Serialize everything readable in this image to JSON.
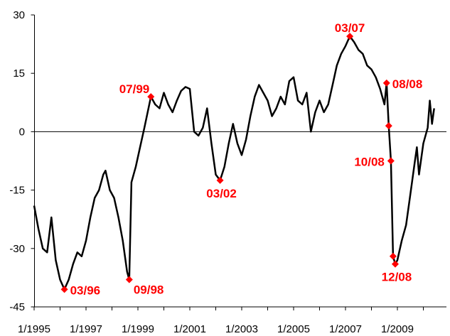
{
  "chart_data": {
    "type": "line",
    "title": "",
    "xlabel": "",
    "ylabel": "",
    "ylim": [
      -45,
      30
    ],
    "xlim": [
      "1995-01",
      "2010-06"
    ],
    "grid": false,
    "legend": "none",
    "y_ticks": [
      30,
      15,
      0,
      -15,
      -30,
      -45
    ],
    "x_ticks": [
      "1/1995",
      "1/1997",
      "1/1999",
      "1/2001",
      "1/2003",
      "1/2005",
      "1/2007",
      "1/2009"
    ],
    "colors": {
      "line": "#000000",
      "annotation": "#ff0000",
      "zero_line": "#000000"
    },
    "series": [
      {
        "values": [
          [
            "1995-01",
            -19
          ],
          [
            "1995-03",
            -25
          ],
          [
            "1995-05",
            -30
          ],
          [
            "1995-07",
            -31
          ],
          [
            "1995-09",
            -22
          ],
          [
            "1995-11",
            -33
          ],
          [
            "1996-01",
            -38
          ],
          [
            "1996-03",
            -40.5
          ],
          [
            "1996-05",
            -38
          ],
          [
            "1996-07",
            -34
          ],
          [
            "1996-09",
            -31
          ],
          [
            "1996-11",
            -32
          ],
          [
            "1997-01",
            -28
          ],
          [
            "1997-03",
            -22
          ],
          [
            "1997-05",
            -17
          ],
          [
            "1997-07",
            -15
          ],
          [
            "1997-09",
            -11
          ],
          [
            "1997-10",
            -10
          ],
          [
            "1997-12",
            -15
          ],
          [
            "1998-02",
            -17
          ],
          [
            "1998-04",
            -22
          ],
          [
            "1998-06",
            -28
          ],
          [
            "1998-08",
            -36
          ],
          [
            "1998-09",
            -38
          ],
          [
            "1998-10",
            -13
          ],
          [
            "1998-12",
            -9
          ],
          [
            "1999-02",
            -4
          ],
          [
            "1999-04",
            1
          ],
          [
            "1999-07",
            9
          ],
          [
            "1999-09",
            7
          ],
          [
            "1999-11",
            6
          ],
          [
            "2000-01",
            10
          ],
          [
            "2000-03",
            7
          ],
          [
            "2000-05",
            5
          ],
          [
            "2000-07",
            8
          ],
          [
            "2000-09",
            10.5
          ],
          [
            "2000-11",
            11.5
          ],
          [
            "2001-01",
            11
          ],
          [
            "2001-03",
            0
          ],
          [
            "2001-05",
            -1
          ],
          [
            "2001-07",
            1
          ],
          [
            "2001-09",
            6
          ],
          [
            "2001-11",
            -3
          ],
          [
            "2002-01",
            -11
          ],
          [
            "2002-03",
            -12.5
          ],
          [
            "2002-05",
            -9
          ],
          [
            "2002-07",
            -3
          ],
          [
            "2002-09",
            2
          ],
          [
            "2002-11",
            -3
          ],
          [
            "2003-01",
            -6
          ],
          [
            "2003-03",
            -2
          ],
          [
            "2003-05",
            4
          ],
          [
            "2003-07",
            9
          ],
          [
            "2003-09",
            12
          ],
          [
            "2003-11",
            10
          ],
          [
            "2004-01",
            8
          ],
          [
            "2004-03",
            4
          ],
          [
            "2004-05",
            6
          ],
          [
            "2004-07",
            9
          ],
          [
            "2004-09",
            7
          ],
          [
            "2004-11",
            13
          ],
          [
            "2005-01",
            14
          ],
          [
            "2005-03",
            8
          ],
          [
            "2005-05",
            7
          ],
          [
            "2005-07",
            10
          ],
          [
            "2005-09",
            0
          ],
          [
            "2005-11",
            5
          ],
          [
            "2006-01",
            8
          ],
          [
            "2006-03",
            5
          ],
          [
            "2006-05",
            7
          ],
          [
            "2006-07",
            12
          ],
          [
            "2006-09",
            17
          ],
          [
            "2006-11",
            20
          ],
          [
            "2007-01",
            22
          ],
          [
            "2007-03",
            24.5
          ],
          [
            "2007-05",
            23
          ],
          [
            "2007-07",
            21
          ],
          [
            "2007-09",
            20
          ],
          [
            "2007-11",
            17
          ],
          [
            "2008-01",
            16
          ],
          [
            "2008-03",
            14
          ],
          [
            "2008-05",
            11
          ],
          [
            "2008-07",
            7
          ],
          [
            "2008-08",
            12.5
          ],
          [
            "2008-09",
            1.5
          ],
          [
            "2008-10",
            -7.5
          ],
          [
            "2008-11",
            -32
          ],
          [
            "2008-12",
            -34
          ],
          [
            "2009-01",
            -33
          ],
          [
            "2009-03",
            -28
          ],
          [
            "2009-05",
            -24
          ],
          [
            "2009-07",
            -16
          ],
          [
            "2009-09",
            -8
          ],
          [
            "2009-10",
            -4
          ],
          [
            "2009-11",
            -11
          ],
          [
            "2010-01",
            -3
          ],
          [
            "2010-03",
            1
          ],
          [
            "2010-04",
            8
          ],
          [
            "2010-05",
            2
          ],
          [
            "2010-06",
            6
          ]
        ]
      }
    ],
    "annotations": [
      {
        "label": "03/96",
        "x": "1996-03",
        "y": -40.5,
        "label_position": "right"
      },
      {
        "label": "09/98",
        "x": "1998-09",
        "y": -38,
        "label_position": "below-right"
      },
      {
        "label": "07/99",
        "x": "1999-07",
        "y": 9,
        "label_position": "above-left"
      },
      {
        "label": "03/02",
        "x": "2002-03",
        "y": -12.5,
        "label_position": "below"
      },
      {
        "label": "03/07",
        "x": "2007-03",
        "y": 24.5,
        "label_position": "above"
      },
      {
        "label": "08/08",
        "x": "2008-08",
        "y": 12.5,
        "label_position": "right"
      },
      {
        "label": "",
        "x": "2008-09",
        "y": 1.5,
        "label_position": "none"
      },
      {
        "label": "10/08",
        "x": "2008-10",
        "y": -7.5,
        "label_position": "left"
      },
      {
        "label": "",
        "x": "2008-11",
        "y": -32,
        "label_position": "none"
      },
      {
        "label": "12/08",
        "x": "2008-12",
        "y": -34,
        "label_position": "below"
      }
    ]
  }
}
